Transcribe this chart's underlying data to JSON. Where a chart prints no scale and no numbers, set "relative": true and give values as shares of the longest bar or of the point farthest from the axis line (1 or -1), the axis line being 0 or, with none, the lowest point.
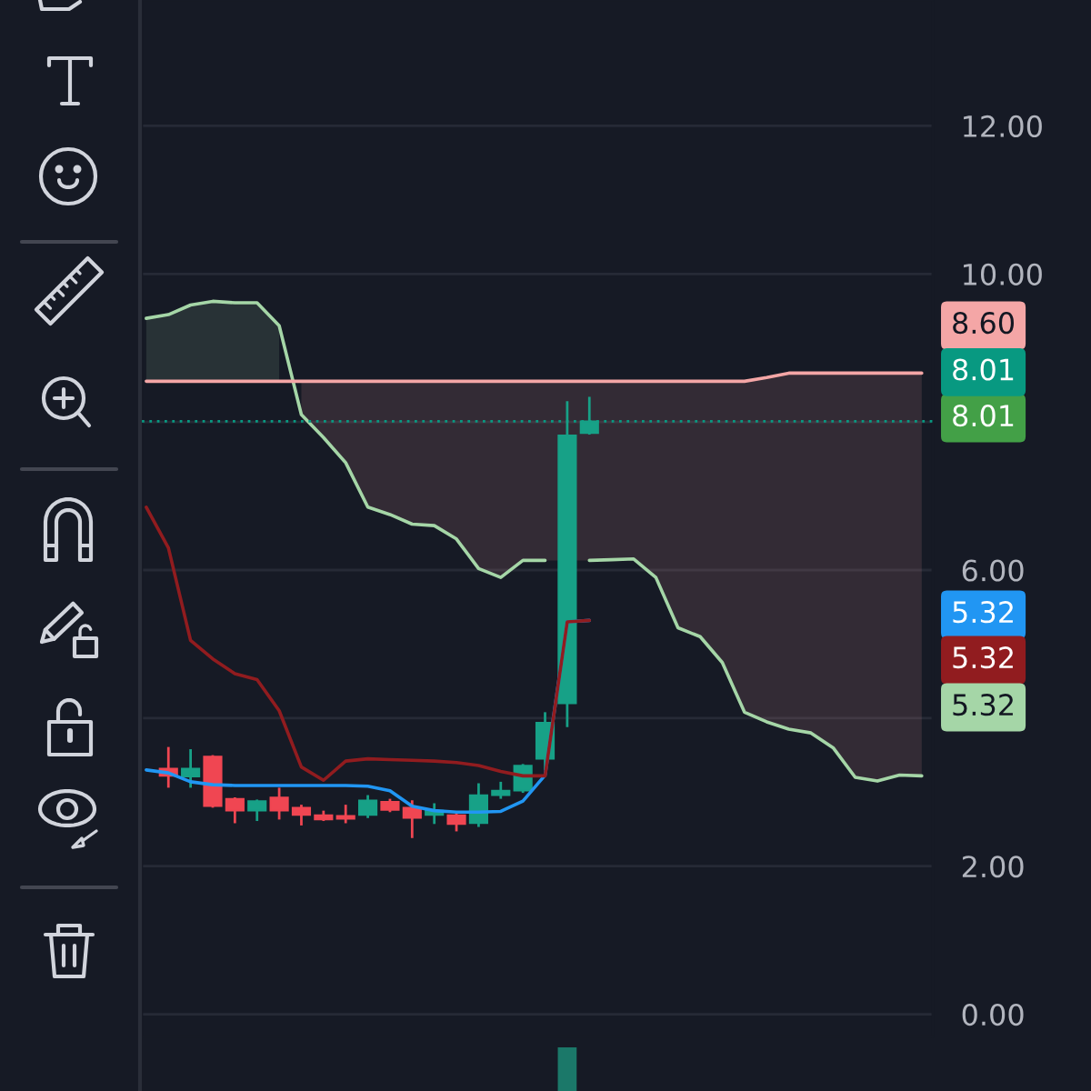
{
  "chart_data": [
    {
      "type": "candlestick",
      "categories": [
        null,
        null,
        null,
        null,
        null,
        null,
        null,
        null,
        null,
        null,
        null,
        null,
        null,
        null,
        null,
        null,
        null,
        null,
        null,
        null,
        null,
        null,
        null,
        null,
        null,
        null,
        null,
        null,
        null,
        null,
        null,
        null,
        null,
        null,
        null,
        null
      ],
      "ohlc": [
        null,
        [
          3.32,
          3.61,
          3.06,
          3.22
        ],
        [
          3.21,
          3.58,
          3.06,
          3.32
        ],
        [
          3.48,
          3.5,
          2.79,
          2.81
        ],
        [
          2.91,
          2.93,
          2.58,
          2.75
        ],
        [
          2.75,
          2.9,
          2.61,
          2.88
        ],
        [
          2.93,
          3.06,
          2.63,
          2.75
        ],
        [
          2.79,
          2.83,
          2.55,
          2.69
        ],
        [
          2.69,
          2.75,
          2.61,
          2.63
        ],
        [
          2.68,
          2.83,
          2.58,
          2.64
        ],
        [
          2.69,
          2.96,
          2.65,
          2.89
        ],
        [
          2.87,
          2.91,
          2.73,
          2.76
        ],
        [
          2.79,
          2.89,
          2.38,
          2.65
        ],
        [
          2.69,
          2.85,
          2.57,
          2.75
        ],
        [
          2.69,
          2.73,
          2.47,
          2.57
        ],
        [
          2.58,
          3.12,
          2.53,
          2.96
        ],
        [
          2.96,
          3.14,
          2.91,
          3.02
        ],
        [
          3.02,
          3.38,
          2.99,
          3.36
        ],
        [
          3.45,
          4.08,
          3.3,
          3.94
        ],
        [
          4.2,
          8.28,
          3.88,
          7.82
        ],
        [
          7.85,
          8.34,
          7.83,
          8.01
        ],
        null,
        null,
        null,
        null,
        null,
        null,
        null,
        null,
        null,
        null,
        null,
        null,
        null,
        null,
        null
      ],
      "colors": [
        null,
        "#f04652",
        "#17a187",
        "#f04652",
        "#f04652",
        "#17a187",
        "#f04652",
        "#f04652",
        "#f04652",
        "#f04652",
        "#17a187",
        "#f04652",
        "#f04652",
        "#17a187",
        "#f04652",
        "#17a187",
        "#17a187",
        "#17a187",
        "#17a187",
        "#17a187",
        "#17a187",
        null,
        null,
        null,
        null,
        null,
        null,
        null,
        null,
        null,
        null,
        null,
        null,
        null,
        null,
        null
      ],
      "series": [
        {
          "type": "line",
          "color": "#2196f3",
          "values": [
            3.3,
            3.26,
            3.14,
            3.1,
            3.09,
            3.09,
            3.09,
            3.09,
            3.09,
            3.09,
            3.08,
            3.02,
            2.81,
            2.75,
            2.73,
            2.73,
            2.74,
            2.88,
            3.23,
            5.3,
            5.32,
            null,
            null,
            null,
            null,
            null,
            null,
            null,
            null,
            null,
            null,
            null,
            null,
            null,
            null,
            null
          ]
        },
        {
          "type": "line",
          "color": "#911c1f",
          "values": [
            6.85,
            6.3,
            5.05,
            4.8,
            4.6,
            4.52,
            4.1,
            3.34,
            3.16,
            3.42,
            3.45,
            3.44,
            3.43,
            3.42,
            3.4,
            3.36,
            3.28,
            3.22,
            3.22,
            5.3,
            5.32,
            null,
            null,
            null,
            null,
            null,
            null,
            null,
            null,
            null,
            null,
            null,
            null,
            null,
            null,
            null
          ]
        },
        {
          "type": "line",
          "color": "#a5d6a7",
          "values": [
            9.4,
            9.45,
            9.58,
            9.63,
            9.61,
            9.61,
            9.3,
            8.1,
            7.79,
            7.45,
            6.85,
            6.75,
            6.62,
            6.6,
            6.42,
            6.02,
            5.9,
            6.13,
            6.13,
            null,
            6.13,
            6.14,
            6.15,
            5.9,
            5.22,
            5.1,
            4.75,
            4.08,
            3.95,
            3.85,
            3.8,
            3.6,
            3.2,
            3.15,
            3.23,
            3.22
          ],
          "lower": [
            8.55,
            8.55,
            8.55,
            8.55,
            8.55,
            8.55,
            8.55,
            null,
            null,
            null,
            null,
            null,
            null,
            null,
            null,
            null,
            null,
            null,
            null,
            null,
            null,
            null,
            null,
            null,
            null,
            null,
            null,
            null,
            null,
            null,
            null,
            null,
            null,
            null,
            null,
            null
          ],
          "upper": [
            9.4,
            9.45,
            9.58,
            9.63,
            9.61,
            9.61,
            9.3,
            null,
            null,
            null,
            null,
            null,
            null,
            null,
            null,
            null,
            null,
            null,
            null,
            null,
            null,
            null,
            null,
            null,
            null,
            null,
            null,
            null,
            null,
            null,
            null,
            null,
            null,
            null,
            null,
            null
          ]
        },
        {
          "type": "line",
          "color": "#f4a6a6",
          "values": [
            8.55,
            8.55,
            8.55,
            8.55,
            8.55,
            8.55,
            8.55,
            8.55,
            8.55,
            8.55,
            8.55,
            8.55,
            8.55,
            8.55,
            8.55,
            8.55,
            8.55,
            8.55,
            8.55,
            8.55,
            8.55,
            8.55,
            8.55,
            8.55,
            8.55,
            8.55,
            8.55,
            8.55,
            8.6,
            8.66,
            8.66,
            8.66,
            8.66,
            8.66,
            8.66,
            8.66
          ],
          "lower": [
            null,
            null,
            null,
            null,
            null,
            null,
            null,
            8.1,
            7.79,
            7.45,
            6.85,
            6.75,
            6.62,
            6.6,
            6.42,
            6.02,
            5.9,
            6.13,
            6.13,
            6.13,
            6.13,
            6.14,
            6.15,
            5.9,
            5.22,
            5.1,
            4.75,
            4.08,
            3.95,
            3.85,
            3.8,
            3.6,
            3.2,
            3.15,
            3.23,
            3.22
          ],
          "upper": [
            null,
            null,
            null,
            null,
            null,
            null,
            null,
            8.55,
            8.55,
            8.55,
            8.55,
            8.55,
            8.55,
            8.55,
            8.55,
            8.55,
            8.55,
            8.55,
            8.55,
            8.55,
            8.55,
            8.55,
            8.55,
            8.55,
            8.55,
            8.55,
            8.55,
            8.55,
            8.6,
            8.66,
            8.66,
            8.66,
            8.66,
            8.66,
            8.66,
            8.66
          ]
        }
      ],
      "ylim": [
        -0.3,
        13.7
      ],
      "yticks": [
        {
          "value": 0,
          "label": "0.00"
        },
        {
          "value": 2,
          "label": "2.00"
        },
        {
          "value": 4,
          "label": null
        },
        {
          "value": 6,
          "label": "6.00"
        },
        {
          "value": 8,
          "label": null
        },
        {
          "value": 10,
          "label": "10.00"
        },
        {
          "value": 12,
          "label": "12.00"
        }
      ],
      "grid": "y",
      "tick_labels": "y",
      "ref_lines": [
        {
          "axis": "y",
          "value": 8.01,
          "label": "8.01",
          "color": "#089981",
          "line_style": "dotted"
        }
      ],
      "annotations": [
        "8.60",
        "8.01",
        "5.32",
        "5.32",
        "5.32"
      ]
    },
    {
      "type": "bar",
      "relative": true,
      "tick_labels": false,
      "color": "#1b7869",
      "categories": [
        null,
        null,
        null,
        null,
        null,
        null,
        null,
        null,
        null,
        null,
        null,
        null,
        null,
        null,
        null,
        null,
        null,
        null,
        null,
        null,
        null,
        null,
        null,
        null,
        null,
        null,
        null,
        null,
        null,
        null,
        null,
        null,
        null,
        null,
        null,
        null
      ],
      "values": [
        null,
        null,
        null,
        null,
        null,
        null,
        null,
        null,
        null,
        null,
        null,
        null,
        null,
        null,
        null,
        null,
        null,
        null,
        null,
        1,
        null,
        null,
        null,
        null,
        null,
        null,
        null,
        null,
        null,
        null,
        null,
        null,
        null,
        null,
        null,
        null
      ]
    }
  ]
}
